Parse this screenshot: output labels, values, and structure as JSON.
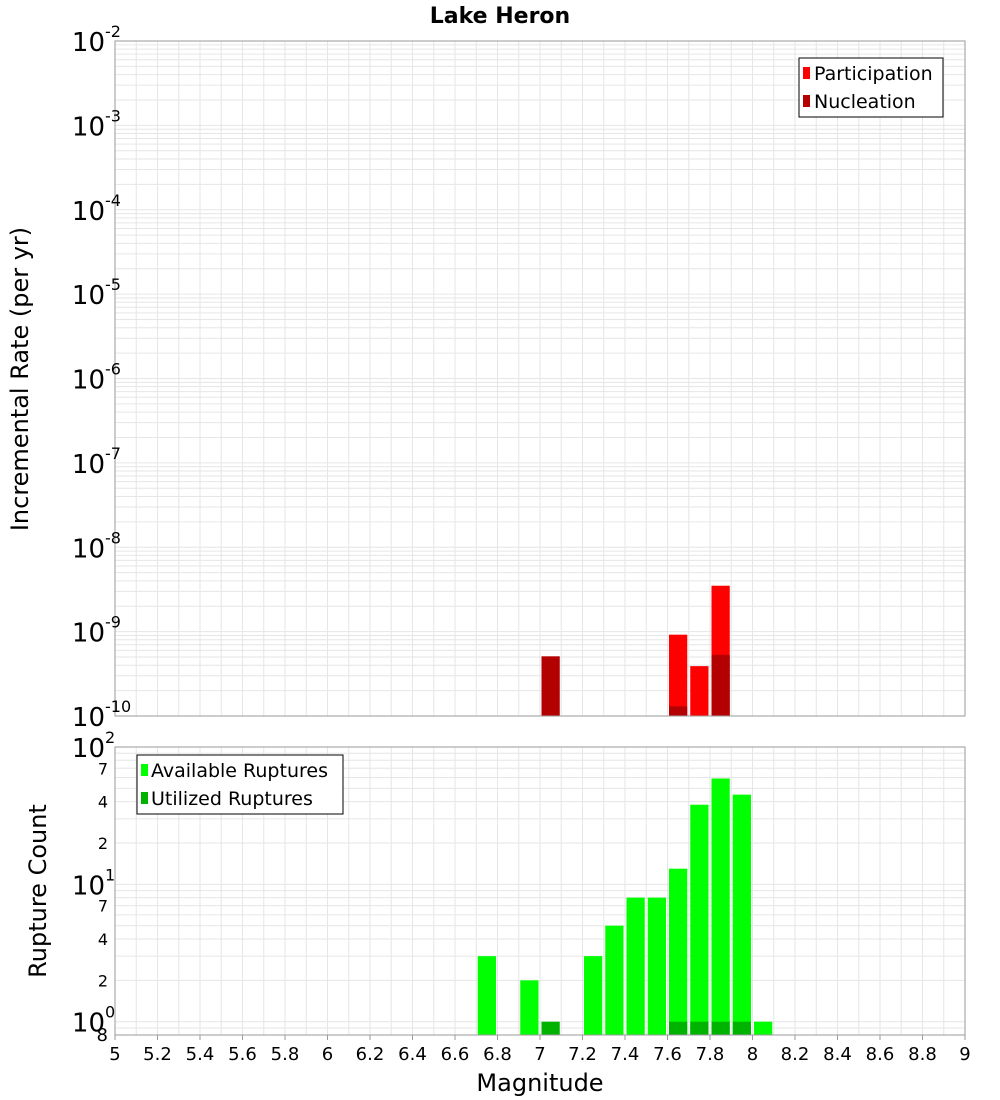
{
  "chart_data": [
    {
      "type": "bar",
      "title": "Lake Heron",
      "xlabel": "",
      "ylabel": "Incremental Rate (per yr)",
      "x_scale": "linear",
      "y_scale": "log",
      "xlim": [
        5,
        9
      ],
      "ylim": [
        1e-10,
        0.01
      ],
      "bar_width": 0.1,
      "y_tick_base_labels": [
        "10",
        "10",
        "10",
        "10",
        "10",
        "10",
        "10",
        "10",
        "10"
      ],
      "y_tick_exponent_labels": [
        "-10",
        "-9",
        "-8",
        "-7",
        "-6",
        "-5",
        "-4",
        "-3",
        "-2"
      ],
      "grid": true,
      "legend_position": "top-right",
      "series": [
        {
          "name": "Participation",
          "color": "#ff0000",
          "points": [
            {
              "x": 7.65,
              "y": 9.2e-10
            },
            {
              "x": 7.75,
              "y": 3.9e-10
            },
            {
              "x": 7.85,
              "y": 3.5e-09
            }
          ]
        },
        {
          "name": "Nucleation",
          "color": "#b30000",
          "points": [
            {
              "x": 7.05,
              "y": 5.1e-10
            },
            {
              "x": 7.65,
              "y": 1.3e-10
            },
            {
              "x": 7.85,
              "y": 5.3e-10
            }
          ]
        }
      ]
    },
    {
      "type": "bar",
      "title": "",
      "xlabel": "Magnitude",
      "ylabel": "Rupture Count",
      "x_scale": "linear",
      "y_scale": "log",
      "xlim": [
        5,
        9
      ],
      "ylim": [
        0.8,
        100
      ],
      "bar_width": 0.1,
      "x_tick_labels": [
        "5",
        "5.2",
        "5.4",
        "5.6",
        "5.8",
        "6",
        "6.2",
        "6.4",
        "6.6",
        "6.8",
        "7",
        "7.2",
        "7.4",
        "7.6",
        "7.8",
        "8",
        "8.2",
        "8.4",
        "8.6",
        "8.8",
        "9"
      ],
      "y_major_base_labels": [
        "10",
        "10",
        "10"
      ],
      "y_major_exponent_labels": [
        "0",
        "1",
        "2"
      ],
      "y_minor_labels": [
        "8",
        "2",
        "4",
        "7",
        "2",
        "4",
        "7"
      ],
      "grid": true,
      "legend_position": "top-left",
      "series": [
        {
          "name": "Available Ruptures",
          "color": "#00ff00",
          "points": [
            {
              "x": 6.75,
              "y": 3
            },
            {
              "x": 6.95,
              "y": 2
            },
            {
              "x": 7.25,
              "y": 3
            },
            {
              "x": 7.35,
              "y": 5
            },
            {
              "x": 7.45,
              "y": 8
            },
            {
              "x": 7.55,
              "y": 8
            },
            {
              "x": 7.65,
              "y": 13
            },
            {
              "x": 7.75,
              "y": 38
            },
            {
              "x": 7.85,
              "y": 59
            },
            {
              "x": 7.95,
              "y": 45
            },
            {
              "x": 8.05,
              "y": 1
            }
          ]
        },
        {
          "name": "Utilized Ruptures",
          "color": "#00b300",
          "points": [
            {
              "x": 7.05,
              "y": 1
            },
            {
              "x": 7.65,
              "y": 1
            },
            {
              "x": 7.75,
              "y": 1
            },
            {
              "x": 7.85,
              "y": 1
            },
            {
              "x": 7.95,
              "y": 1
            }
          ]
        }
      ]
    }
  ]
}
